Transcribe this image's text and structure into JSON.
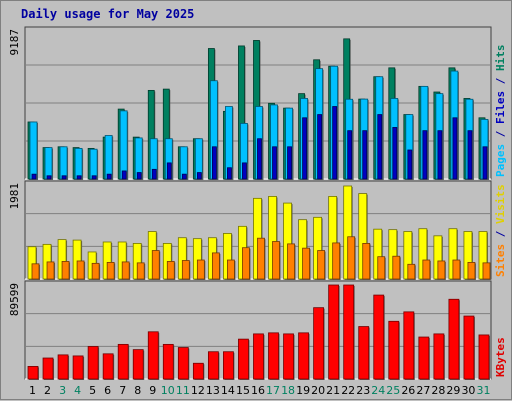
{
  "title": "Daily usage for May 2025",
  "chart_data": {
    "type": "bar",
    "title": "Daily usage for May 2025",
    "days": [
      "1",
      "2",
      "3",
      "4",
      "5",
      "6",
      "7",
      "8",
      "9",
      "10",
      "11",
      "12",
      "13",
      "14",
      "15",
      "16",
      "17",
      "18",
      "19",
      "20",
      "21",
      "22",
      "23",
      "24",
      "25",
      "26",
      "27",
      "28",
      "29",
      "30",
      "31"
    ],
    "weekend_days": [
      "3",
      "4",
      "10",
      "11",
      "17",
      "18",
      "24",
      "25",
      "31"
    ],
    "panels": [
      {
        "id": "top",
        "ymax_label": "9187",
        "ylim": [
          0,
          9187
        ],
        "side_labels": [
          {
            "text": "Pages",
            "color": "#00c0ff"
          },
          {
            "text": " / ",
            "color": "#0000a0"
          },
          {
            "text": "Files",
            "color": "#0000c0"
          },
          {
            "text": " / ",
            "color": "#0000a0"
          },
          {
            "text": "Hits",
            "color": "#008060"
          }
        ],
        "series": [
          {
            "name": "Hits",
            "color": "#008060",
            "values": [
              3540,
              1950,
              2000,
              1950,
              1900,
              2600,
              4340,
              2600,
              5500,
              5580,
              2000,
              2500,
              8100,
              4200,
              8260,
              8600,
              4700,
              4400,
              5300,
              7400,
              7000,
              8700,
              4960,
              6350,
              6900,
              4000,
              5750,
              5400,
              6900,
              5000,
              3800
            ]
          },
          {
            "name": "Files",
            "color": "#00c0ff",
            "values": [
              3540,
              1950,
              2000,
              1900,
              1850,
              2700,
              4230,
              2550,
              2500,
              2500,
              2000,
              2500,
              6100,
              4500,
              3450,
              4500,
              4600,
              4400,
              5000,
              6850,
              7000,
              4950,
              4960,
              6350,
              5000,
              4000,
              5750,
              5300,
              6700,
              4950,
              3700
            ]
          },
          {
            "name": "Pages",
            "color": "#0000c0",
            "values": [
              300,
              200,
              200,
              200,
              200,
              300,
              500,
              400,
              600,
              1000,
              300,
              400,
              2000,
              700,
              1000,
              2500,
              2000,
              2000,
              3800,
              4000,
              4500,
              3000,
              3000,
              4000,
              3200,
              1800,
              3000,
              3000,
              3800,
              3000,
              2000
            ]
          }
        ]
      },
      {
        "id": "middle",
        "ymax_label": "1981",
        "ylim": [
          0,
          1981
        ],
        "side_labels": [
          {
            "text": "Sites",
            "color": "#ff8000"
          },
          {
            "text": " / ",
            "color": "#0000a0"
          },
          {
            "text": "Visits",
            "color": "#e0d000"
          }
        ],
        "series": [
          {
            "name": "Visits",
            "color": "#ffff00",
            "values": [
              680,
              730,
              830,
              820,
              570,
              780,
              780,
              750,
              1000,
              750,
              870,
              850,
              870,
              960,
              1110,
              1700,
              1740,
              1600,
              1250,
              1300,
              1740,
              1960,
              1800,
              1050,
              1040,
              1000,
              1060,
              910,
              1060,
              1000,
              1000
            ]
          },
          {
            "name": "Sites",
            "color": "#ff8000",
            "values": [
              320,
              360,
              370,
              380,
              330,
              350,
              360,
              340,
              600,
              370,
              390,
              400,
              550,
              400,
              660,
              860,
              790,
              740,
              650,
              600,
              760,
              890,
              750,
              470,
              480,
              310,
              400,
              380,
              400,
              350,
              340
            ]
          }
        ]
      },
      {
        "id": "bottom",
        "ymax_label": "89599",
        "ylim": [
          0,
          89599
        ],
        "side_labels": [
          {
            "text": "KBytes",
            "color": "#e00000"
          }
        ],
        "series": [
          {
            "name": "KBytes",
            "color": "#ff0000",
            "values": [
              12000,
              20000,
              23000,
              22000,
              31000,
              24000,
              33000,
              28000,
              45000,
              33000,
              30000,
              15000,
              26000,
              26000,
              38000,
              43000,
              44000,
              43000,
              44000,
              68000,
              89599,
              89599,
              50000,
              80000,
              55000,
              64000,
              40000,
              43000,
              76000,
              60000,
              42000
            ]
          }
        ]
      }
    ]
  }
}
